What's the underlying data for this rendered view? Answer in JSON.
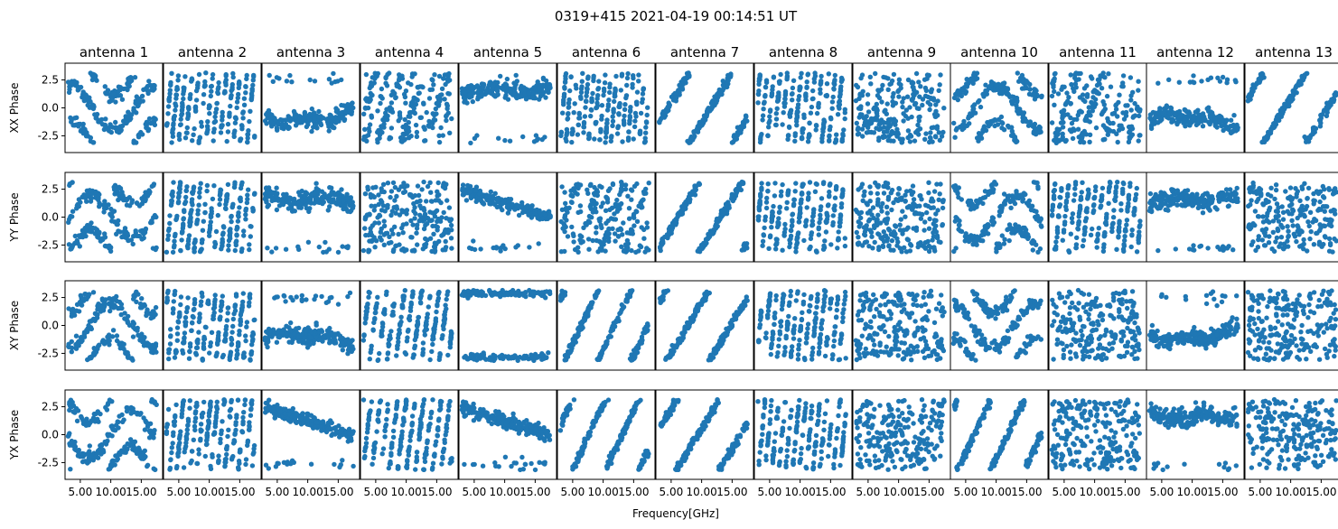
{
  "chart_data": {
    "type": "scatter",
    "title": "0319+415 2021-04-19 00:14:51 UT",
    "xlabel": "Frequency[GHz]",
    "columns": [
      "antenna 1",
      "antenna 2",
      "antenna 3",
      "antenna 4",
      "antenna 5",
      "antenna 6",
      "antenna 7",
      "antenna 8",
      "antenna 9",
      "antenna 10",
      "antenna 11",
      "antenna 12",
      "antenna 13"
    ],
    "rows": [
      "XX Phase",
      "YY Phase",
      "XY Phase",
      "YX Phase"
    ],
    "xlim": [
      2.5,
      18.5
    ],
    "ylim": [
      -4.0,
      4.0
    ],
    "xticks": [
      5.0,
      10.0,
      15.0
    ],
    "xtick_labels": [
      "5.00",
      "10.00",
      "15.00"
    ],
    "yticks": [
      2.5,
      0.0,
      -2.5
    ],
    "ytick_labels": [
      "2.5",
      "0.0",
      "-2.5"
    ],
    "point_color": "#1f77b4",
    "frequency_range": [
      3.0,
      17.5
    ],
    "phase_range": [
      -3.14,
      3.14
    ],
    "patterns": {
      "XX Phase": [
        "smooth-wrap",
        "banded",
        "flat-low",
        "mixed",
        "flat-high",
        "banded",
        "diagonal",
        "banded",
        "random",
        "smooth-wrap",
        "mixed",
        "flat-low",
        "diagonal"
      ],
      "YY Phase": [
        "smooth-wrap",
        "banded",
        "flat-high",
        "random",
        "decline",
        "mixed",
        "diagonal",
        "banded",
        "random",
        "smooth-wrap",
        "banded",
        "flat-high",
        "random"
      ],
      "XY Phase": [
        "smooth-wrap",
        "banded",
        "flat-low",
        "banded",
        "two-level",
        "diagonal",
        "diagonal",
        "banded",
        "random",
        "smooth-wrap",
        "random",
        "flat-low",
        "random"
      ],
      "YX Phase": [
        "smooth-wrap",
        "banded",
        "decline",
        "banded",
        "decline",
        "diagonal",
        "diagonal",
        "banded",
        "random",
        "diagonal",
        "random",
        "flat-high",
        "random"
      ]
    }
  }
}
